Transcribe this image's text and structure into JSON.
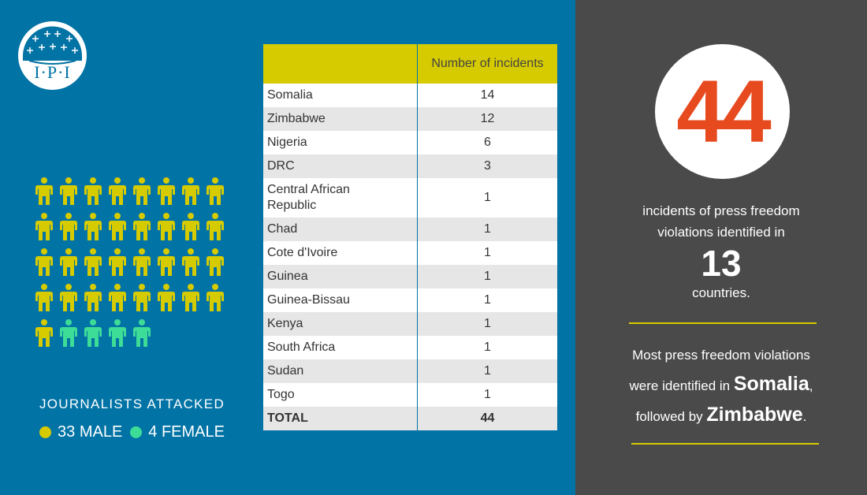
{
  "logo": {
    "text": "I·P·I"
  },
  "colors": {
    "blue": "#0173a5",
    "gray": "#4a4a4a",
    "yellow": "#d6cb00",
    "male": "#d6cb00",
    "female": "#3ddc97",
    "accent": "#e64a1e"
  },
  "journalists": {
    "caption": "JOURNALISTS ATTACKED",
    "male_label": "33 MALE",
    "female_label": "4 FEMALE",
    "male_count": 33,
    "female_count": 4
  },
  "table": {
    "headers": [
      "",
      "Number of incidents"
    ],
    "rows": [
      {
        "country": "Somalia",
        "value": "14"
      },
      {
        "country": "Zimbabwe",
        "value": "12"
      },
      {
        "country": "Nigeria",
        "value": "6"
      },
      {
        "country": "DRC",
        "value": "3"
      },
      {
        "country": "Central African Republic",
        "value": "1"
      },
      {
        "country": "Chad",
        "value": "1"
      },
      {
        "country": "Cote d'Ivoire",
        "value": "1"
      },
      {
        "country": "Guinea",
        "value": "1"
      },
      {
        "country": "Guinea-Bissau",
        "value": "1"
      },
      {
        "country": "Kenya",
        "value": "1"
      },
      {
        "country": "South Africa",
        "value": "1"
      },
      {
        "country": "Sudan",
        "value": "1"
      },
      {
        "country": "Togo",
        "value": "1"
      }
    ],
    "total": {
      "label": "TOTAL",
      "value": "44"
    }
  },
  "stats": {
    "incidents": "44",
    "line1": "incidents of press freedom",
    "line2": "violations identified in",
    "countries": "13",
    "line3": "countries.",
    "summary_a": "Most press freedom violations",
    "summary_b": "were identified in ",
    "top1": "Somalia",
    "comma": ",",
    "summary_c": "followed by ",
    "top2": "Zimbabwe",
    "period": "."
  },
  "chart_data": {
    "type": "table",
    "columns": [
      "",
      "Number of incidents"
    ],
    "categories": [
      "Somalia",
      "Zimbabwe",
      "Nigeria",
      "DRC",
      "Central African Republic",
      "Chad",
      "Cote d'Ivoire",
      "Guinea",
      "Guinea-Bissau",
      "Kenya",
      "South Africa",
      "Sudan",
      "Togo"
    ],
    "values": [
      14,
      12,
      6,
      3,
      1,
      1,
      1,
      1,
      1,
      1,
      1,
      1,
      1
    ],
    "total": 44,
    "pictogram": {
      "male": 33,
      "female": 4
    }
  }
}
